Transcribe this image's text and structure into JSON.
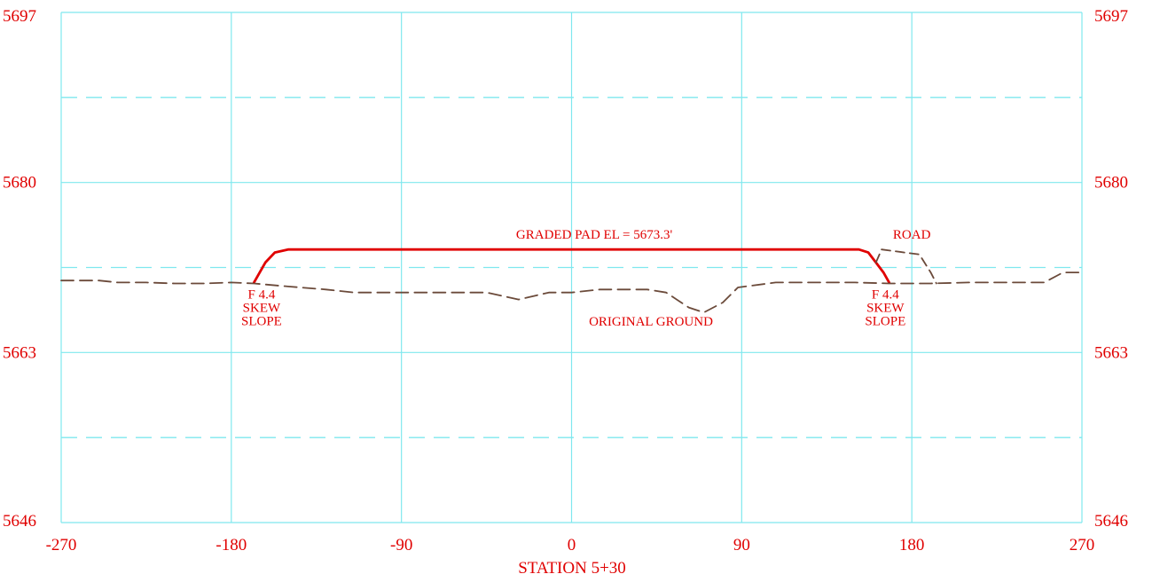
{
  "chart_data": {
    "type": "line",
    "title": "",
    "xlabel": "STATION 5+30",
    "ylabel": "",
    "xlim": [
      -270,
      270
    ],
    "ylim": [
      5646,
      5697
    ],
    "x_ticks": [
      -270,
      -180,
      -90,
      0,
      90,
      180,
      270
    ],
    "y_ticks": [
      5697,
      5680,
      5663,
      5646
    ],
    "minor_y_gridlines": [
      5688.5,
      5671.5,
      5654.5
    ],
    "grid": true,
    "colors": {
      "grid": "#7fe8ee",
      "text": "#e00000",
      "design": "#e00000",
      "ground": "#6b4a3a",
      "road": "#6b4a3a"
    },
    "series": [
      {
        "key": "design",
        "x": [
          -168,
          -162,
          -157,
          -150,
          -142,
          -100,
          0,
          100,
          152,
          157,
          161,
          165,
          168
        ],
        "y": [
          5670.0,
          5672.0,
          5673.0,
          5673.3,
          5673.3,
          5673.3,
          5673.3,
          5673.3,
          5673.3,
          5673.0,
          5672.0,
          5671.0,
          5670.0
        ]
      },
      {
        "key": "ground",
        "x": [
          -270,
          -250,
          -240,
          -225,
          -210,
          -195,
          -180,
          -168,
          -150,
          -130,
          -115,
          -100,
          -90,
          -70,
          -45,
          -28,
          -12,
          0,
          15,
          40,
          50,
          62,
          70,
          80,
          88,
          108,
          150,
          168,
          190,
          210,
          230,
          250,
          260,
          270
        ],
        "y": [
          5670.2,
          5670.2,
          5670.0,
          5670.0,
          5669.9,
          5669.9,
          5670.0,
          5669.9,
          5669.6,
          5669.3,
          5669.0,
          5669.0,
          5669.0,
          5669.0,
          5669.0,
          5668.3,
          5669.0,
          5669.0,
          5669.3,
          5669.3,
          5669.0,
          5667.5,
          5667.0,
          5668.0,
          5669.5,
          5670.0,
          5670.0,
          5669.9,
          5669.9,
          5670.0,
          5670.0,
          5670.0,
          5671.0,
          5671.0
        ]
      },
      {
        "key": "road",
        "x": [
          161,
          164,
          184,
          190,
          193
        ],
        "y": [
          5672.0,
          5673.3,
          5672.8,
          5671.0,
          5669.9
        ]
      }
    ],
    "annotations": [
      {
        "key": "pad",
        "text": "GRADED PAD EL = 5673.3'",
        "x": 12,
        "y": 5674.4
      },
      {
        "key": "road",
        "text": "ROAD",
        "x": 180,
        "y": 5674.4
      },
      {
        "key": "ground",
        "text": "ORIGINAL GROUND",
        "x": 42,
        "y": 5665.7
      },
      {
        "key": "slope-left",
        "lines": [
          "F 4.4",
          "SKEW",
          "SLOPE"
        ],
        "x": -164,
        "y": 5668.4
      },
      {
        "key": "slope-right",
        "lines": [
          "F 4.4",
          "SKEW",
          "SLOPE"
        ],
        "x": 166,
        "y": 5668.4
      }
    ]
  }
}
